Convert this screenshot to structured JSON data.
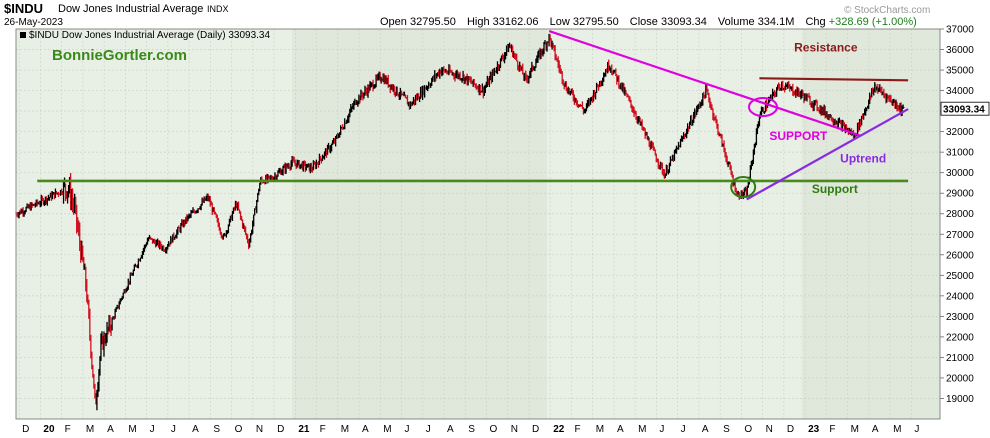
{
  "header": {
    "symbol": "$INDU",
    "name": "Dow Jones Industrial Average",
    "exchange": "INDX",
    "date": "26-May-2023",
    "open_label": "Open",
    "open": "32795.50",
    "high_label": "High",
    "high": "33162.06",
    "low_label": "Low",
    "low": "32795.50",
    "close_label": "Close",
    "close": "33093.34",
    "volume_label": "Volume",
    "volume": "334.1M",
    "chg_label": "Chg",
    "chg": "+328.69 (+1.00%)",
    "watermark": "© StockCharts.com"
  },
  "chart_data": {
    "type": "bar",
    "legend_text": "$INDU Dow Jones Industrial Average (Daily) 33093.34",
    "watermark_text": "BonnieGortler.com",
    "last_value_label": "33093.34",
    "ylim": [
      18000,
      37000
    ],
    "y_ticks": [
      19000,
      20000,
      21000,
      22000,
      23000,
      24000,
      25000,
      26000,
      27000,
      28000,
      29000,
      30000,
      31000,
      32000,
      33000,
      34000,
      35000,
      36000,
      37000
    ],
    "x_month_labels": [
      "D",
      "20",
      "F",
      "M",
      "A",
      "M",
      "J",
      "J",
      "A",
      "S",
      "O",
      "N",
      "D",
      "21",
      "F",
      "M",
      "A",
      "M",
      "J",
      "J",
      "A",
      "S",
      "O",
      "N",
      "D",
      "22",
      "F",
      "M",
      "A",
      "M",
      "J",
      "J",
      "A",
      "S",
      "O",
      "N",
      "D",
      "23",
      "F",
      "M",
      "A",
      "M",
      "J"
    ],
    "x_start": "2019-12",
    "series": [
      {
        "x": [
          "2019-12",
          "2020-01",
          "2020-02-15",
          "2020-02-24",
          "2020-03-10",
          "2020-03-23",
          "2020-04-01",
          "2020-05-01",
          "2020-06-08",
          "2020-07-01",
          "2020-08-01",
          "2020-09-02",
          "2020-09-24",
          "2020-10-12",
          "2020-10-30",
          "2020-11-16",
          "2020-12-01",
          "2021-01-01",
          "2021-01-29",
          "2021-03-01",
          "2021-04-01",
          "2021-05-07",
          "2021-06-18",
          "2021-08-01",
          "2021-09-01",
          "2021-10-01",
          "2021-11-08",
          "2021-12-01",
          "2022-01-04",
          "2022-01-27",
          "2022-02-24",
          "2022-03-29",
          "2022-05-01",
          "2022-06-17",
          "2022-08-16",
          "2022-09-30",
          "2022-10-13",
          "2022-11-01",
          "2022-12-01",
          "2023-01-01",
          "2023-02-01",
          "2023-03-15",
          "2023-04-14",
          "2023-05-01",
          "2023-05-25"
        ],
        "values": [
          28000,
          28500,
          29300,
          28200,
          24500,
          18600,
          21500,
          24000,
          26800,
          26300,
          27700,
          28800,
          26800,
          28500,
          26500,
          29600,
          29700,
          30500,
          30200,
          31500,
          33500,
          34700,
          33300,
          35000,
          34700,
          34000,
          36200,
          34500,
          36600,
          34200,
          33000,
          35300,
          33200,
          29900,
          34000,
          28900,
          29000,
          32800,
          34300,
          33800,
          33000,
          31800,
          34200,
          33700,
          33000
        ]
      }
    ],
    "annotations": [
      {
        "text": "Resistance",
        "color": "#8b1a1a"
      },
      {
        "text": "SUPPORT",
        "color": "#e000e0"
      },
      {
        "text": "Uptrend",
        "color": "#8a2be2"
      },
      {
        "text": "Support",
        "color": "#2e7d10"
      }
    ],
    "trendlines": [
      {
        "name": "support-line",
        "color": "#4a8a1a",
        "from": [
          "2020-01",
          29600
        ],
        "to": [
          "2023-06",
          29600
        ]
      },
      {
        "name": "resistance-line",
        "color": "#8b1a1a",
        "from": [
          "2022-11",
          34600
        ],
        "to": [
          "2023-06",
          34500
        ]
      },
      {
        "name": "downtrend-line",
        "color": "#e000e0",
        "from": [
          "2022-01-04",
          36900
        ],
        "to": [
          "2023-03-24",
          31800
        ]
      },
      {
        "name": "uptrend-line",
        "color": "#8a2be2",
        "from": [
          "2022-10-13",
          28700
        ],
        "to": [
          "2023-05-31",
          33100
        ]
      }
    ],
    "ellipses": [
      {
        "name": "october-low-ellipse",
        "color": "#2e7d10",
        "center": [
          "2022-10-08",
          29300
        ]
      },
      {
        "name": "november-breakout-ellipse",
        "color": "#e000e0",
        "center": [
          "2022-11-06",
          33200
        ]
      }
    ],
    "shading": "alternating-years",
    "grid": true,
    "up_bar_color": "#000000",
    "down_bar_color": "#d01020"
  }
}
